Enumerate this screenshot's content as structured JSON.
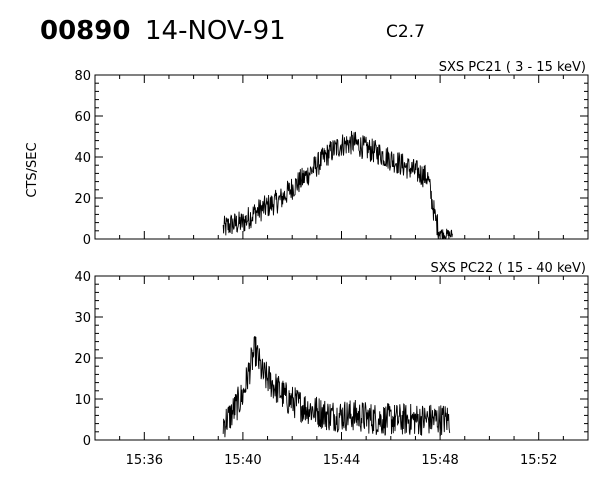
{
  "header": {
    "event_id": "00890",
    "date": "14-NOV-91",
    "flare_class": "C2.7"
  },
  "chart_data": [
    {
      "type": "line",
      "title": "SXS PC21  (  3 - 15 keV)",
      "ylabel": "CTS/SEC",
      "xlabel": "",
      "xlim": [
        "15:34",
        "15:54"
      ],
      "ylim": [
        0,
        80
      ],
      "yticks": [
        0,
        20,
        40,
        60,
        80
      ],
      "xticks": [
        "15:36",
        "15:40",
        "15:44",
        "15:48",
        "15:52"
      ],
      "series": [
        {
          "x": [
            "15:39.2",
            "15:39.5",
            "15:40.0",
            "15:40.5",
            "15:41.0",
            "15:41.5",
            "15:42.0",
            "15:42.5",
            "15:43.0",
            "15:43.5",
            "15:44.0",
            "15:44.5",
            "15:45.0",
            "15:45.5",
            "15:46.0",
            "15:46.5",
            "15:47.0",
            "15:47.5",
            "15:47.8",
            "15:48.0",
            "15:48.3",
            "15:48.5"
          ],
          "y": [
            5,
            7,
            8,
            13,
            16,
            19,
            25,
            30,
            36,
            42,
            46,
            47,
            44,
            42,
            39,
            36,
            33,
            30,
            10,
            3,
            2,
            2
          ],
          "noise": 6
        }
      ]
    },
    {
      "type": "line",
      "title": "SXS PC22  ( 15 - 40 keV)",
      "ylabel": "",
      "xlabel": "",
      "xlim": [
        "15:34",
        "15:54"
      ],
      "ylim": [
        0,
        40
      ],
      "yticks": [
        0,
        10,
        20,
        30,
        40
      ],
      "xticks": [
        "15:36",
        "15:40",
        "15:44",
        "15:48",
        "15:52"
      ],
      "series": [
        {
          "x": [
            "15:39.2",
            "15:39.5",
            "15:40.0",
            "15:40.3",
            "15:40.5",
            "15:40.8",
            "15:41.0",
            "15:41.3",
            "15:41.8",
            "15:42.5",
            "15:43.5",
            "15:44.5",
            "15:45.5",
            "15:46.5",
            "15:47.5",
            "15:48.0",
            "15:48.4"
          ],
          "y": [
            4,
            6,
            11,
            18,
            22,
            16,
            15,
            13,
            10,
            8,
            6,
            6,
            5,
            5,
            5,
            5,
            5
          ],
          "noise": 4
        }
      ]
    }
  ]
}
